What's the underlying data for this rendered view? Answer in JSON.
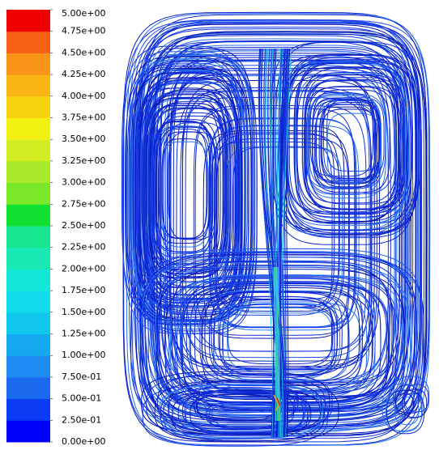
{
  "chart_data": {
    "type": "streamline",
    "colorbar": {
      "lim": [
        0,
        5
      ],
      "ticks": [
        {
          "value": 0,
          "label": "0.00e+00"
        },
        {
          "value": 0.25,
          "label": "2.50e-01"
        },
        {
          "value": 0.5,
          "label": "5.00e-01"
        },
        {
          "value": 0.75,
          "label": "7.50e-01"
        },
        {
          "value": 1,
          "label": "1.00e+00"
        },
        {
          "value": 1.25,
          "label": "1.25e+00"
        },
        {
          "value": 1.5,
          "label": "1.50e+00"
        },
        {
          "value": 1.75,
          "label": "1.75e+00"
        },
        {
          "value": 2,
          "label": "2.00e+00"
        },
        {
          "value": 2.25,
          "label": "2.25e+00"
        },
        {
          "value": 2.5,
          "label": "2.50e+00"
        },
        {
          "value": 2.75,
          "label": "2.75e+00"
        },
        {
          "value": 3,
          "label": "3.00e+00"
        },
        {
          "value": 3.25,
          "label": "3.25e+00"
        },
        {
          "value": 3.5,
          "label": "3.50e+00"
        },
        {
          "value": 3.75,
          "label": "3.75e+00"
        },
        {
          "value": 4,
          "label": "4.00e+00"
        },
        {
          "value": 4.25,
          "label": "4.25e+00"
        },
        {
          "value": 4.5,
          "label": "4.50e+00"
        },
        {
          "value": 4.75,
          "label": "4.75e+00"
        },
        {
          "value": 5,
          "label": "5.00e+00"
        }
      ],
      "colors": [
        "#0000ff",
        "#0a3cf5",
        "#1a6af0",
        "#1f8bf2",
        "#14a8f0",
        "#10c8ee",
        "#10dcec",
        "#14e6d8",
        "#18e8b4",
        "#18e690",
        "#10e030",
        "#78e828",
        "#a8ea2a",
        "#d2ee22",
        "#f2f010",
        "#f8d410",
        "#fab414",
        "#fa9418",
        "#f86018",
        "#f00000"
      ]
    }
  }
}
